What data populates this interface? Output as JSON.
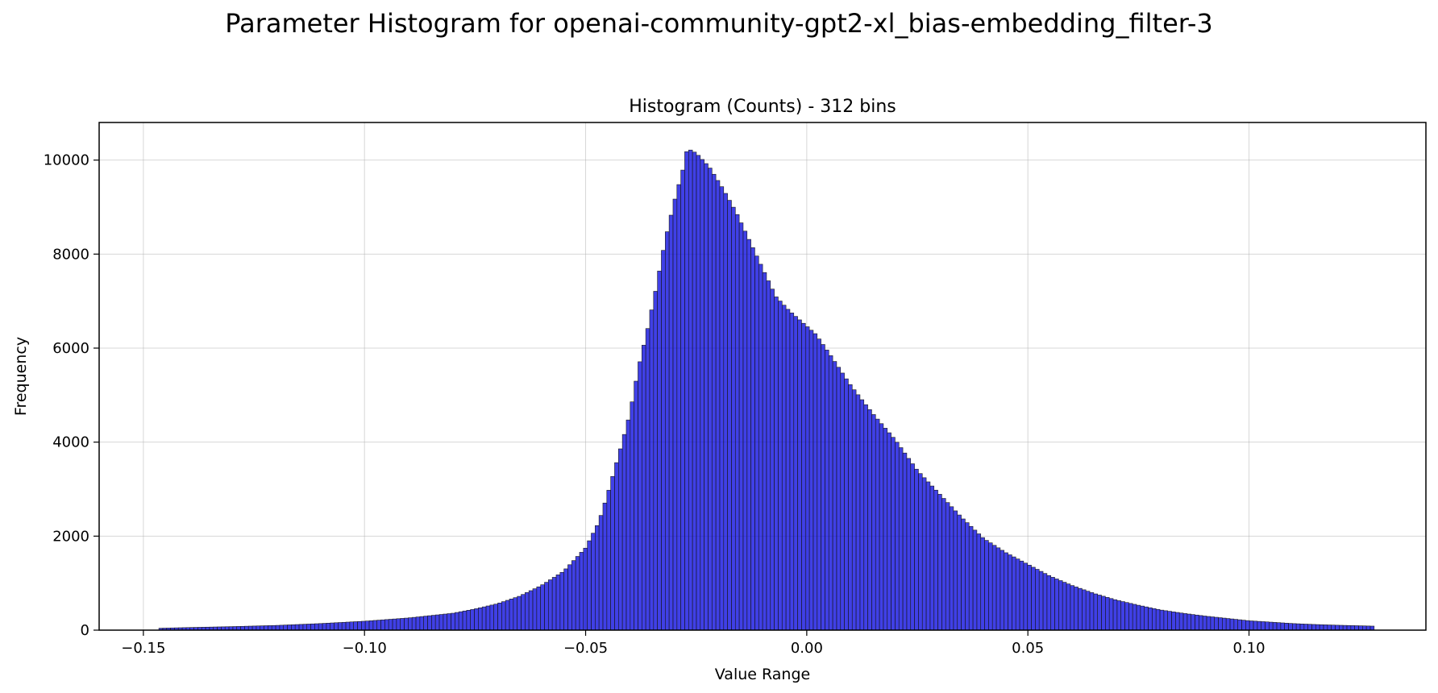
{
  "figure": {
    "suptitle": "Parameter Histogram for openai-community-gpt2-xl_bias-embedding_filter-3"
  },
  "chart_data": {
    "type": "bar",
    "title": "Histogram (Counts) - 312 bins",
    "xlabel": "Value Range",
    "ylabel": "Frequency",
    "bins": 312,
    "bar_color": "#0000dd",
    "bar_edge_color": "#1a1a1a",
    "xlim": [
      -0.16,
      0.14
    ],
    "ylim": [
      0,
      10800
    ],
    "x_range": [
      -0.1465,
      0.1283
    ],
    "x_ticks": [
      -0.15,
      -0.1,
      -0.05,
      0.0,
      0.05,
      0.1
    ],
    "x_tick_labels": [
      "−0.15",
      "−0.10",
      "−0.05",
      "0.00",
      "0.05",
      "0.10"
    ],
    "y_ticks": [
      0,
      2000,
      4000,
      6000,
      8000,
      10000
    ],
    "y_tick_labels": [
      "0",
      "2000",
      "4000",
      "6000",
      "8000",
      "10000"
    ],
    "grid": true,
    "profile": [
      [
        -0.1465,
        40
      ],
      [
        -0.14,
        55
      ],
      [
        -0.13,
        75
      ],
      [
        -0.12,
        100
      ],
      [
        -0.11,
        140
      ],
      [
        -0.1,
        190
      ],
      [
        -0.09,
        260
      ],
      [
        -0.08,
        360
      ],
      [
        -0.075,
        450
      ],
      [
        -0.07,
        560
      ],
      [
        -0.065,
        720
      ],
      [
        -0.06,
        950
      ],
      [
        -0.055,
        1250
      ],
      [
        -0.05,
        1750
      ],
      [
        -0.047,
        2300
      ],
      [
        -0.045,
        2900
      ],
      [
        -0.042,
        3900
      ],
      [
        -0.04,
        4600
      ],
      [
        -0.038,
        5600
      ],
      [
        -0.036,
        6400
      ],
      [
        -0.034,
        7300
      ],
      [
        -0.032,
        8300
      ],
      [
        -0.03,
        9100
      ],
      [
        -0.028,
        9800
      ],
      [
        -0.027,
        10250
      ],
      [
        -0.025,
        10150
      ],
      [
        -0.022,
        9850
      ],
      [
        -0.019,
        9400
      ],
      [
        -0.016,
        8900
      ],
      [
        -0.013,
        8300
      ],
      [
        -0.01,
        7700
      ],
      [
        -0.007,
        7100
      ],
      [
        -0.004,
        6800
      ],
      [
        -0.001,
        6550
      ],
      [
        0.002,
        6300
      ],
      [
        0.005,
        5900
      ],
      [
        0.01,
        5200
      ],
      [
        0.015,
        4600
      ],
      [
        0.02,
        4050
      ],
      [
        0.025,
        3400
      ],
      [
        0.03,
        2900
      ],
      [
        0.035,
        2400
      ],
      [
        0.04,
        1950
      ],
      [
        0.045,
        1650
      ],
      [
        0.05,
        1400
      ],
      [
        0.055,
        1150
      ],
      [
        0.06,
        950
      ],
      [
        0.065,
        780
      ],
      [
        0.07,
        640
      ],
      [
        0.075,
        530
      ],
      [
        0.08,
        430
      ],
      [
        0.085,
        360
      ],
      [
        0.09,
        300
      ],
      [
        0.095,
        250
      ],
      [
        0.1,
        200
      ],
      [
        0.105,
        170
      ],
      [
        0.11,
        140
      ],
      [
        0.115,
        120
      ],
      [
        0.12,
        105
      ],
      [
        0.1283,
        85
      ]
    ]
  }
}
